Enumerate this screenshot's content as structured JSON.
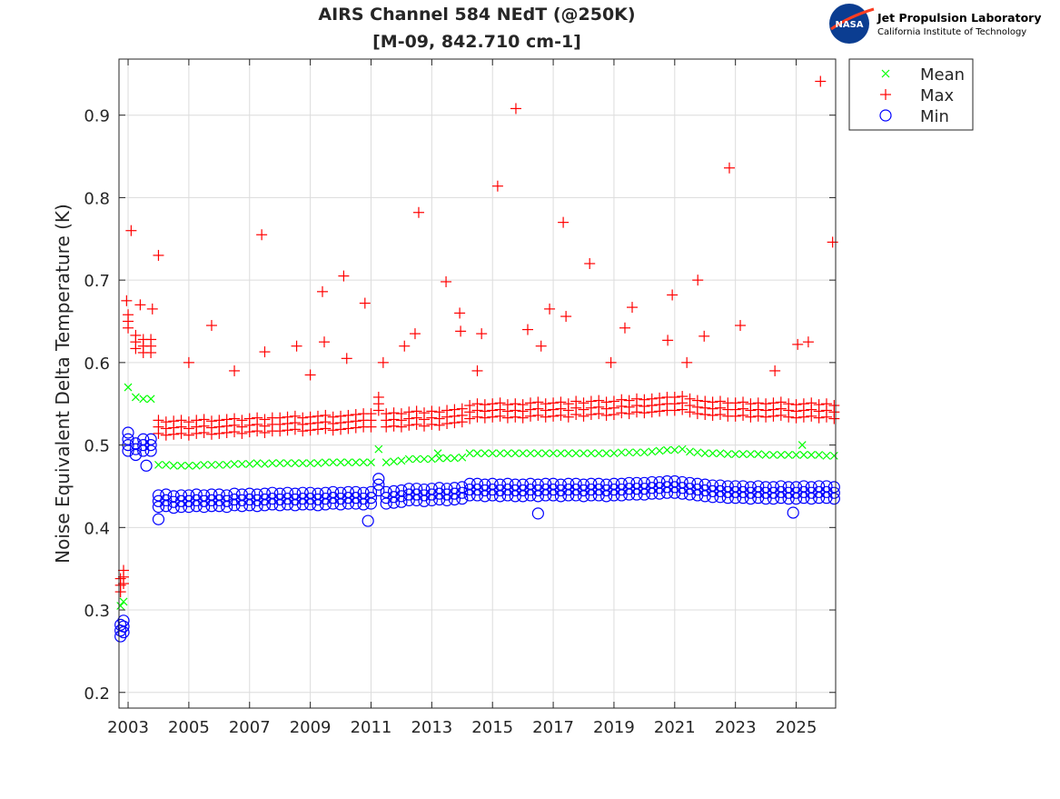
{
  "chart_data": {
    "type": "scatter",
    "title": "AIRS Channel 584 NEdT (@250K)",
    "subtitle": "[M-09, 842.710 cm-1]",
    "xlabel": "",
    "ylabel": "Noise Equivalent Delta Temperature (K)",
    "xlim": [
      2002.7,
      2026.3
    ],
    "ylim": [
      0.181,
      0.968
    ],
    "xticks": [
      2003,
      2005,
      2007,
      2009,
      2011,
      2013,
      2015,
      2017,
      2019,
      2021,
      2023,
      2025
    ],
    "xtick_labels": [
      "2003",
      "2005",
      "2007",
      "2009",
      "2011",
      "2013",
      "2015",
      "2017",
      "2019",
      "2021",
      "2023",
      "2025"
    ],
    "yticks": [
      0.2,
      0.3,
      0.4,
      0.5,
      0.6,
      0.7,
      0.8,
      0.9
    ],
    "ytick_labels": [
      "0.2",
      "0.3",
      "0.4",
      "0.5",
      "0.6",
      "0.7",
      "0.8",
      "0.9"
    ],
    "grid": true,
    "legend_position": "outside-top-right",
    "x": [
      2002.75,
      2002.85,
      2003.0,
      2003.25,
      2003.5,
      2003.75,
      2004.0,
      2004.25,
      2004.5,
      2004.75,
      2005.0,
      2005.25,
      2005.5,
      2005.75,
      2006.0,
      2006.25,
      2006.5,
      2006.75,
      2007.0,
      2007.25,
      2007.5,
      2007.75,
      2008.0,
      2008.25,
      2008.5,
      2008.75,
      2009.0,
      2009.25,
      2009.5,
      2009.75,
      2010.0,
      2010.25,
      2010.5,
      2010.75,
      2011.0,
      2011.25,
      2011.5,
      2011.75,
      2012.0,
      2012.25,
      2012.5,
      2012.75,
      2013.0,
      2013.25,
      2013.5,
      2013.75,
      2014.0,
      2014.25,
      2014.5,
      2014.75,
      2015.0,
      2015.25,
      2015.5,
      2015.75,
      2016.0,
      2016.25,
      2016.5,
      2016.75,
      2017.0,
      2017.25,
      2017.5,
      2017.75,
      2018.0,
      2018.25,
      2018.5,
      2018.75,
      2019.0,
      2019.25,
      2019.5,
      2019.75,
      2020.0,
      2020.25,
      2020.5,
      2020.75,
      2021.0,
      2021.25,
      2021.5,
      2021.75,
      2022.0,
      2022.25,
      2022.5,
      2022.75,
      2023.0,
      2023.25,
      2023.5,
      2023.75,
      2024.0,
      2024.25,
      2024.5,
      2024.75,
      2025.0,
      2025.25,
      2025.5,
      2025.75,
      2026.0,
      2026.25
    ],
    "series": [
      {
        "name": "Mean",
        "marker": "x",
        "color": "#00ff00",
        "values": [
          0.305,
          0.31,
          0.57,
          0.558,
          0.556,
          0.556,
          0.476,
          0.476,
          0.475,
          0.475,
          0.475,
          0.475,
          0.476,
          0.476,
          0.476,
          0.476,
          0.477,
          0.477,
          0.477,
          0.478,
          0.477,
          0.478,
          0.478,
          0.478,
          0.478,
          0.478,
          0.478,
          0.478,
          0.479,
          0.479,
          0.479,
          0.479,
          0.479,
          0.479,
          0.479,
          0.495,
          0.479,
          0.48,
          0.481,
          0.483,
          0.483,
          0.483,
          0.483,
          0.484,
          0.484,
          0.484,
          0.485,
          0.49,
          0.49,
          0.49,
          0.49,
          0.49,
          0.49,
          0.49,
          0.49,
          0.49,
          0.49,
          0.49,
          0.49,
          0.49,
          0.49,
          0.49,
          0.49,
          0.49,
          0.49,
          0.49,
          0.49,
          0.491,
          0.491,
          0.491,
          0.491,
          0.492,
          0.493,
          0.494,
          0.494,
          0.495,
          0.492,
          0.491,
          0.49,
          0.49,
          0.49,
          0.489,
          0.489,
          0.489,
          0.489,
          0.489,
          0.488,
          0.488,
          0.488,
          0.488,
          0.488,
          0.488,
          0.488,
          0.488,
          0.487,
          0.487
        ],
        "extra_points": [
          [
            2013.2,
            0.49
          ],
          [
            2025.2,
            0.5
          ]
        ]
      },
      {
        "name": "Max",
        "marker": "+",
        "color": "#ff0000",
        "values": [
          0.33,
          0.34,
          0.65,
          0.625,
          0.62,
          0.62,
          0.522,
          0.52,
          0.521,
          0.522,
          0.52,
          0.522,
          0.523,
          0.521,
          0.522,
          0.523,
          0.524,
          0.522,
          0.524,
          0.525,
          0.523,
          0.525,
          0.525,
          0.526,
          0.527,
          0.525,
          0.526,
          0.527,
          0.528,
          0.526,
          0.527,
          0.528,
          0.529,
          0.53,
          0.53,
          0.55,
          0.53,
          0.531,
          0.53,
          0.532,
          0.533,
          0.531,
          0.533,
          0.532,
          0.534,
          0.535,
          0.536,
          0.54,
          0.542,
          0.541,
          0.542,
          0.543,
          0.541,
          0.542,
          0.541,
          0.543,
          0.544,
          0.542,
          0.543,
          0.544,
          0.542,
          0.545,
          0.543,
          0.545,
          0.546,
          0.544,
          0.545,
          0.547,
          0.546,
          0.548,
          0.547,
          0.548,
          0.549,
          0.55,
          0.55,
          0.551,
          0.548,
          0.546,
          0.545,
          0.544,
          0.545,
          0.543,
          0.543,
          0.544,
          0.542,
          0.543,
          0.542,
          0.543,
          0.544,
          0.542,
          0.541,
          0.542,
          0.543,
          0.541,
          0.542,
          0.54
        ],
        "extra_points": [
          [
            2003.1,
            0.76
          ],
          [
            2004.0,
            0.73
          ],
          [
            2005.75,
            0.645
          ],
          [
            2007.4,
            0.755
          ],
          [
            2007.5,
            0.613
          ],
          [
            2008.55,
            0.62
          ],
          [
            2009.4,
            0.686
          ],
          [
            2009.46,
            0.625
          ],
          [
            2010.1,
            0.705
          ],
          [
            2010.2,
            0.605
          ],
          [
            2010.8,
            0.672
          ],
          [
            2012.1,
            0.62
          ],
          [
            2012.45,
            0.635
          ],
          [
            2012.57,
            0.782
          ],
          [
            2013.47,
            0.698
          ],
          [
            2013.92,
            0.66
          ],
          [
            2013.95,
            0.638
          ],
          [
            2014.64,
            0.635
          ],
          [
            2015.17,
            0.814
          ],
          [
            2015.77,
            0.908
          ],
          [
            2016.16,
            0.64
          ],
          [
            2016.6,
            0.62
          ],
          [
            2016.88,
            0.665
          ],
          [
            2017.33,
            0.77
          ],
          [
            2017.42,
            0.656
          ],
          [
            2018.2,
            0.72
          ],
          [
            2019.36,
            0.642
          ],
          [
            2019.6,
            0.667
          ],
          [
            2020.77,
            0.627
          ],
          [
            2020.92,
            0.682
          ],
          [
            2021.76,
            0.7
          ],
          [
            2021.97,
            0.632
          ],
          [
            2022.8,
            0.836
          ],
          [
            2023.16,
            0.645
          ],
          [
            2025.05,
            0.622
          ],
          [
            2025.4,
            0.625
          ],
          [
            2025.8,
            0.941
          ],
          [
            2026.2,
            0.746
          ],
          [
            2005.0,
            0.6
          ],
          [
            2006.5,
            0.59
          ],
          [
            2009.0,
            0.585
          ],
          [
            2011.4,
            0.6
          ],
          [
            2014.5,
            0.59
          ],
          [
            2018.9,
            0.6
          ],
          [
            2021.4,
            0.6
          ],
          [
            2024.3,
            0.59
          ],
          [
            2002.95,
            0.675
          ],
          [
            2003.4,
            0.67
          ],
          [
            2003.8,
            0.665
          ]
        ]
      },
      {
        "name": "Min",
        "marker": "o",
        "color": "#0000ff",
        "values": [
          0.275,
          0.28,
          0.5,
          0.495,
          0.5,
          0.5,
          0.432,
          0.433,
          0.431,
          0.432,
          0.432,
          0.433,
          0.432,
          0.433,
          0.433,
          0.432,
          0.434,
          0.433,
          0.434,
          0.433,
          0.434,
          0.435,
          0.434,
          0.435,
          0.434,
          0.435,
          0.435,
          0.434,
          0.435,
          0.436,
          0.435,
          0.436,
          0.436,
          0.435,
          0.436,
          0.452,
          0.436,
          0.437,
          0.438,
          0.44,
          0.44,
          0.439,
          0.44,
          0.441,
          0.44,
          0.441,
          0.442,
          0.446,
          0.446,
          0.445,
          0.446,
          0.445,
          0.446,
          0.445,
          0.445,
          0.446,
          0.445,
          0.446,
          0.446,
          0.445,
          0.446,
          0.446,
          0.445,
          0.446,
          0.446,
          0.445,
          0.446,
          0.446,
          0.447,
          0.447,
          0.447,
          0.448,
          0.448,
          0.449,
          0.449,
          0.448,
          0.447,
          0.446,
          0.445,
          0.444,
          0.444,
          0.443,
          0.443,
          0.443,
          0.442,
          0.443,
          0.442,
          0.442,
          0.443,
          0.442,
          0.442,
          0.443,
          0.442,
          0.443,
          0.443,
          0.442
        ],
        "extra_points": [
          [
            2004.0,
            0.41
          ],
          [
            2010.9,
            0.408
          ],
          [
            2016.5,
            0.417
          ],
          [
            2024.9,
            0.418
          ],
          [
            2003.0,
            0.515
          ],
          [
            2003.6,
            0.475
          ]
        ]
      }
    ]
  },
  "logo": {
    "agency": "NASA",
    "line1": "Jet Propulsion Laboratory",
    "line2": "California Institute of Technology"
  }
}
